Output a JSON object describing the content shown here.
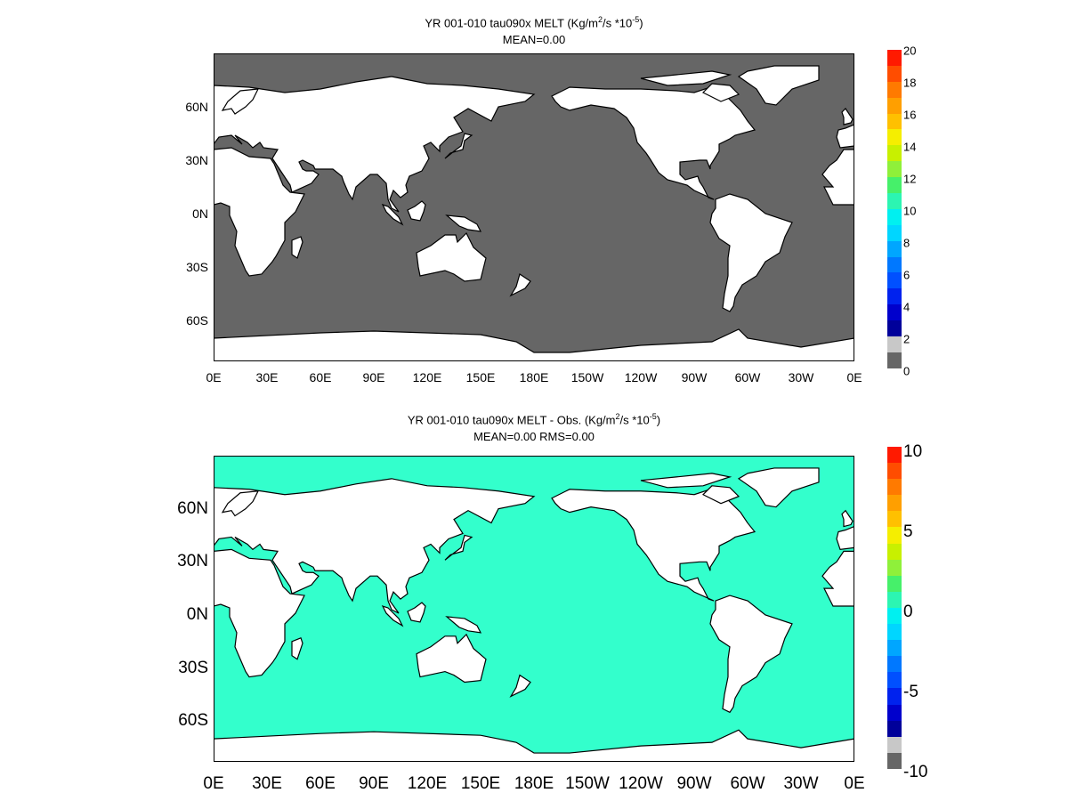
{
  "panel_top": {
    "title": "YR 001-010 tau090x MELT (Kg/m",
    "title_sup": "2",
    "title_mid": "/s  *10",
    "title_sup2": "-5",
    "title_end": ")",
    "subtitle": "MEAN=0.00",
    "ocean_color": "#666666",
    "colorbar_labels": [
      "20",
      "18",
      "16",
      "14",
      "12",
      "10",
      "8",
      "6",
      "4",
      "2",
      "0"
    ],
    "colorbar_colors": [
      "#ff1a00",
      "#ff4d00",
      "#ff7a00",
      "#ff9f00",
      "#ffc000",
      "#f5ee00",
      "#c8f000",
      "#8ff03a",
      "#46f06a",
      "#2cf5b2",
      "#00f0f0",
      "#00d6ff",
      "#00a6ff",
      "#0078ff",
      "#0050ff",
      "#0022ee",
      "#0000cc",
      "#00009a",
      "#c8c8c8",
      "#666666"
    ]
  },
  "panel_bottom": {
    "title": "YR 001-010 tau090x MELT - Obs. (Kg/m",
    "title_sup": "2",
    "title_mid": "/s *10",
    "title_sup2": "-5",
    "title_end": ")",
    "subtitle": "MEAN=0.00   RMS=0.00",
    "ocean_color": "#33ffcc",
    "colorbar_labels": [
      "10",
      "5",
      "0",
      "-5",
      "-10"
    ],
    "colorbar_colors": [
      "#ff1a00",
      "#ff4d00",
      "#ff7a00",
      "#ff9f00",
      "#ffc000",
      "#f5ee00",
      "#c8f000",
      "#8ff03a",
      "#46f06a",
      "#2cf5b2",
      "#00f0f0",
      "#00d6ff",
      "#00a6ff",
      "#0078ff",
      "#0050ff",
      "#0022ee",
      "#0000cc",
      "#00009a",
      "#c8c8c8",
      "#666666"
    ]
  },
  "x_ticks": [
    "0E",
    "30E",
    "60E",
    "90E",
    "120E",
    "150E",
    "180E",
    "150W",
    "120W",
    "90W",
    "60W",
    "30W",
    "0E"
  ],
  "y_ticks": [
    "60N",
    "30N",
    "0N",
    "30S",
    "60S"
  ],
  "chart_data": [
    {
      "type": "heatmap",
      "title": "YR 001-010 tau090x MELT (Kg/m2/s *10-5)",
      "subtitle": "MEAN=0.00",
      "x_ticks": [
        "0E",
        "30E",
        "60E",
        "90E",
        "120E",
        "150E",
        "180E",
        "150W",
        "120W",
        "90W",
        "60W",
        "30W",
        "0E"
      ],
      "y_ticks": [
        "60N",
        "30N",
        "0N",
        "30S",
        "60S"
      ],
      "colorbar_range": [
        0,
        20
      ],
      "values": "ocean field uniformly 0"
    },
    {
      "type": "heatmap",
      "title": "YR 001-010 tau090x MELT - Obs. (Kg/m2/s *10-5)",
      "subtitle": "MEAN=0.00   RMS=0.00",
      "x_ticks": [
        "0E",
        "30E",
        "60E",
        "90E",
        "120E",
        "150E",
        "180E",
        "150W",
        "120W",
        "90W",
        "60W",
        "30W",
        "0E"
      ],
      "y_ticks": [
        "60N",
        "30N",
        "0N",
        "30S",
        "60S"
      ],
      "colorbar_range": [
        -10,
        10
      ],
      "values": "ocean field uniformly 0"
    }
  ]
}
